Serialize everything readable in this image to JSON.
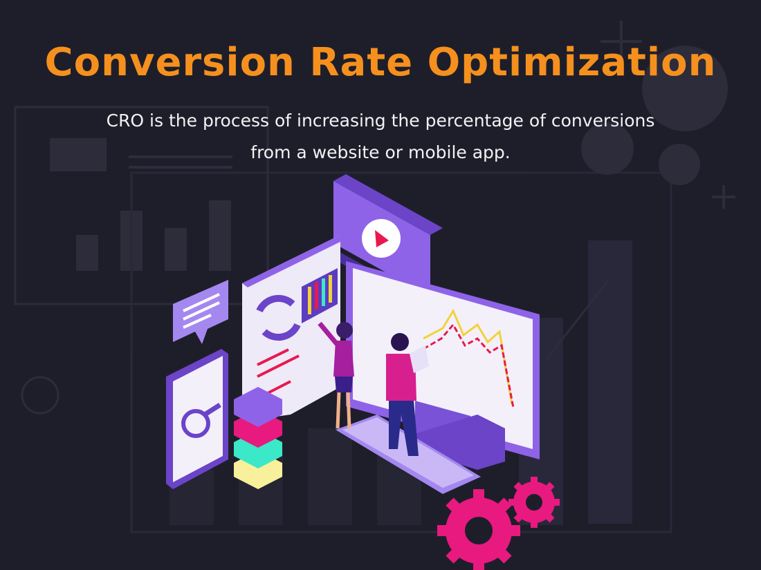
{
  "title": "Conversion Rate Optimization",
  "subtitle_lines": [
    "CRO is the process of increasing the percentage of conversions",
    "from a website or mobile app."
  ]
}
